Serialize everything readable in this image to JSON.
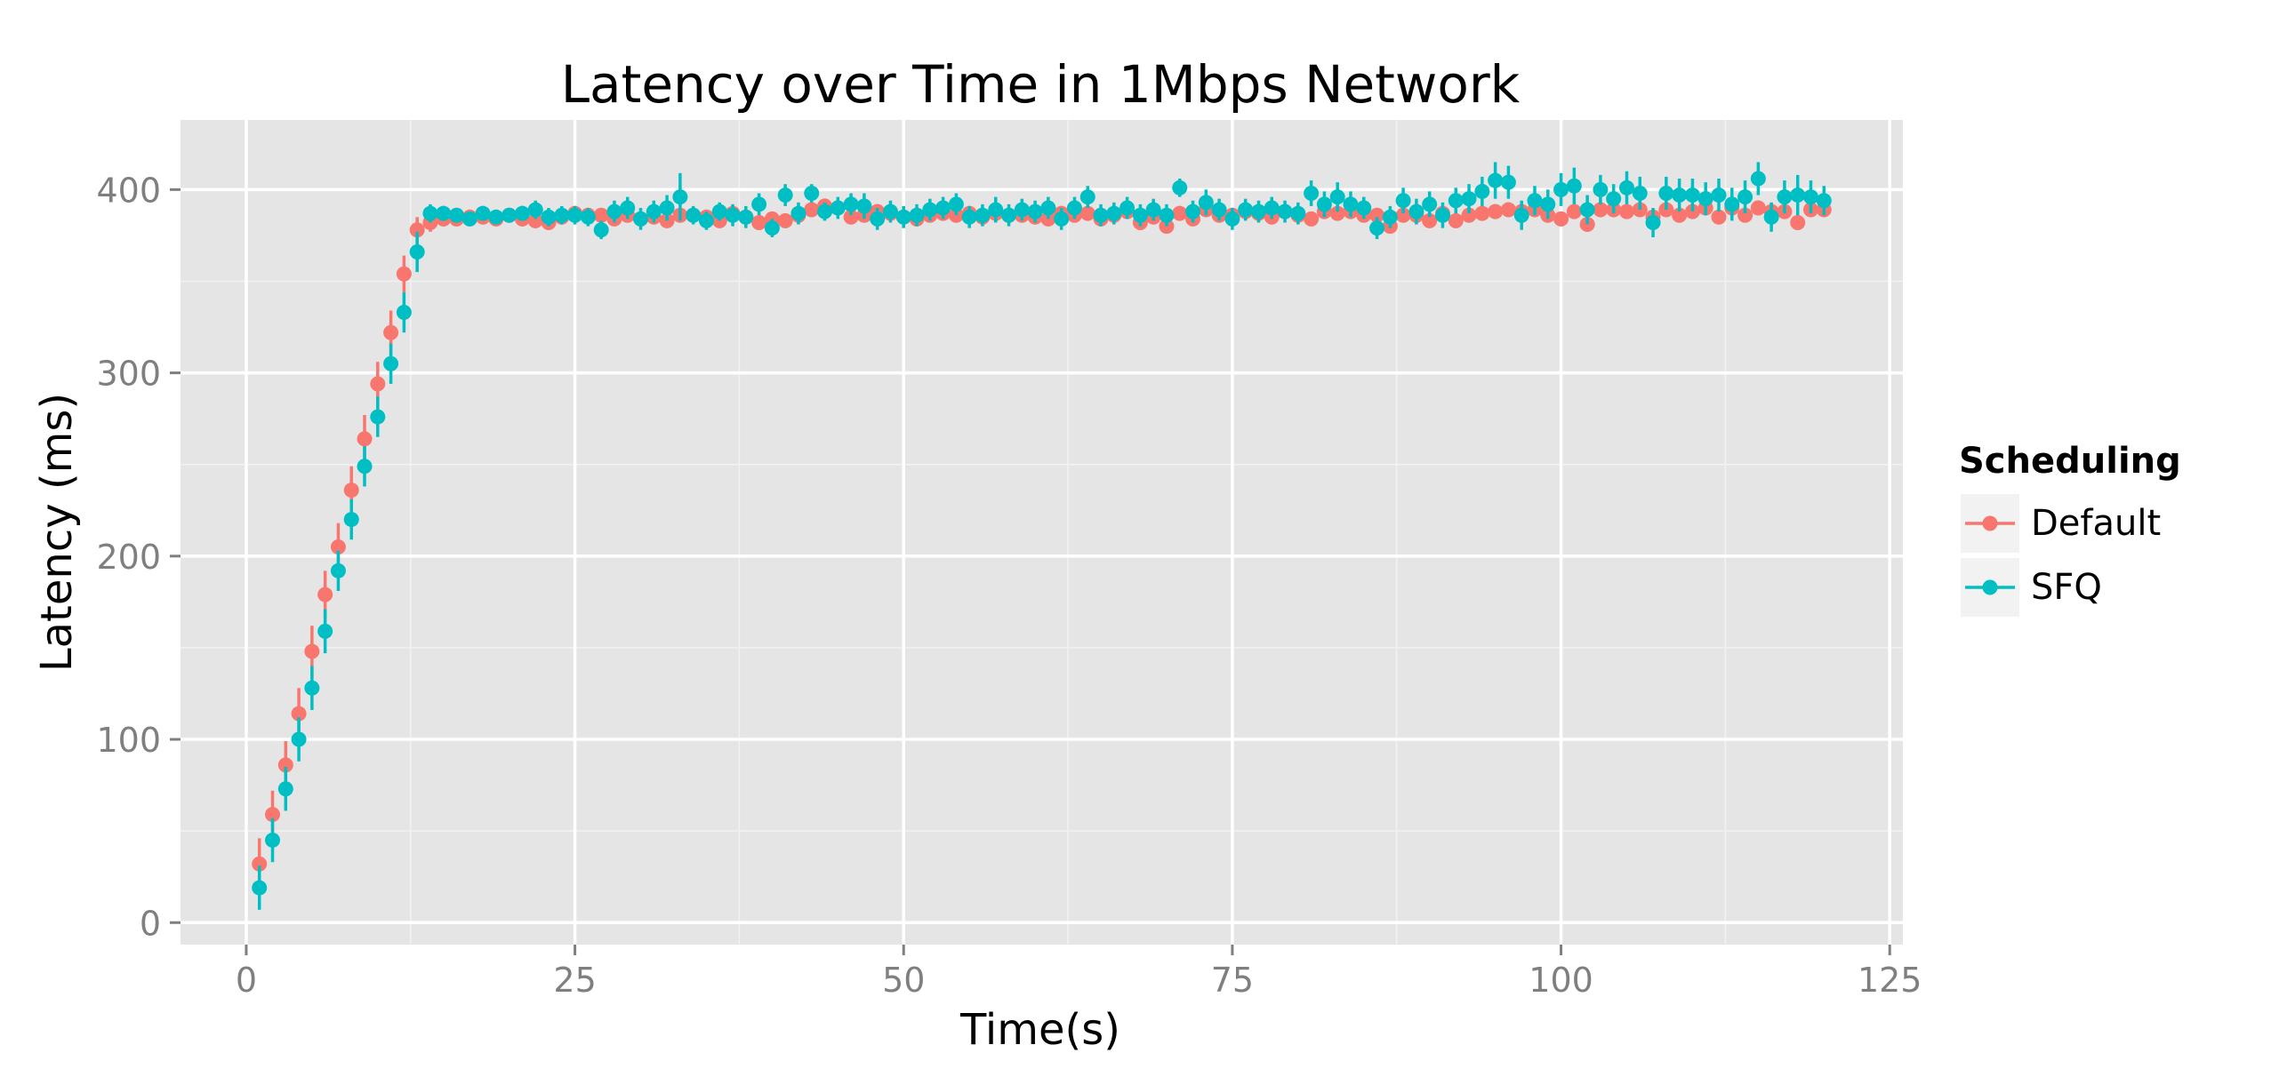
{
  "chart_data": {
    "type": "scatter",
    "title": "Latency over Time in 1Mbps Network",
    "xlabel": "Time(s)",
    "ylabel": "Latency (ms)",
    "xlim": [
      -5,
      126
    ],
    "ylim": [
      -12,
      438
    ],
    "x_ticks": [
      0,
      25,
      50,
      75,
      100,
      125
    ],
    "y_ticks": [
      0,
      100,
      200,
      300,
      400
    ],
    "grid": true,
    "error_bars": true,
    "legend": {
      "title": "Scheduling",
      "position": "right"
    },
    "series": [
      {
        "name": "Default",
        "color": "#F8766D",
        "x": [
          1,
          2,
          3,
          4,
          5,
          6,
          7,
          8,
          9,
          10,
          11,
          12,
          13,
          14,
          15,
          16,
          17,
          18,
          19,
          20,
          21,
          22,
          23,
          24,
          25,
          26,
          27,
          28,
          29,
          30,
          31,
          32,
          33,
          34,
          35,
          36,
          37,
          38,
          39,
          40,
          41,
          42,
          43,
          44,
          45,
          46,
          47,
          48,
          49,
          50,
          51,
          52,
          53,
          54,
          55,
          56,
          57,
          58,
          59,
          60,
          61,
          62,
          63,
          64,
          65,
          66,
          67,
          68,
          69,
          70,
          71,
          72,
          73,
          74,
          75,
          76,
          77,
          78,
          79,
          80,
          81,
          82,
          83,
          84,
          85,
          86,
          87,
          88,
          89,
          90,
          91,
          92,
          93,
          94,
          95,
          96,
          97,
          98,
          99,
          100,
          101,
          102,
          103,
          104,
          105,
          106,
          107,
          108,
          109,
          110,
          111,
          112,
          113,
          114,
          115,
          116,
          117,
          118,
          119,
          120
        ],
        "y": [
          32,
          59,
          86,
          114,
          148,
          179,
          205,
          236,
          264,
          294,
          322,
          354,
          378,
          382,
          384,
          384,
          385,
          385,
          384,
          386,
          384,
          383,
          382,
          385,
          387,
          386,
          386,
          384,
          386,
          384,
          385,
          383,
          386,
          386,
          385,
          383,
          387,
          385,
          382,
          384,
          383,
          386,
          389,
          391,
          390,
          385,
          386,
          388,
          387,
          385,
          384,
          386,
          387,
          386,
          387,
          385,
          387,
          386,
          386,
          385,
          384,
          387,
          386,
          387,
          384,
          386,
          388,
          382,
          385,
          380,
          387,
          384,
          389,
          386,
          386,
          388,
          387,
          385,
          388,
          386,
          384,
          388,
          387,
          388,
          386,
          386,
          380,
          386,
          386,
          383,
          387,
          383,
          386,
          387,
          388,
          389,
          388,
          389,
          386,
          384,
          388,
          381,
          389,
          389,
          388,
          389,
          385,
          389,
          386,
          388,
          390,
          385,
          390,
          386,
          390,
          388,
          388,
          382,
          389,
          389
        ],
        "err": [
          14,
          13,
          13,
          14,
          14,
          13,
          13,
          13,
          13,
          12,
          12,
          10,
          7,
          5,
          4,
          4,
          4,
          4,
          4,
          4,
          4,
          4,
          4,
          4,
          4,
          4,
          4,
          4,
          4,
          4,
          4,
          4,
          4,
          4,
          4,
          4,
          4,
          4,
          4,
          4,
          4,
          4,
          4,
          4,
          4,
          4,
          4,
          4,
          4,
          4,
          4,
          4,
          4,
          4,
          4,
          4,
          4,
          4,
          4,
          4,
          4,
          4,
          4,
          4,
          4,
          4,
          4,
          4,
          4,
          4,
          4,
          4,
          4,
          4,
          4,
          4,
          4,
          4,
          4,
          4,
          4,
          4,
          4,
          4,
          4,
          4,
          4,
          4,
          4,
          4,
          4,
          4,
          4,
          4,
          4,
          4,
          4,
          4,
          4,
          4,
          4,
          4,
          4,
          4,
          4,
          4,
          4,
          4,
          4,
          4,
          4,
          4,
          4,
          4,
          4,
          4,
          4,
          4,
          4,
          4
        ]
      },
      {
        "name": "SFQ",
        "color": "#00BFC4",
        "x": [
          1,
          2,
          3,
          4,
          5,
          6,
          7,
          8,
          9,
          10,
          11,
          12,
          13,
          14,
          15,
          16,
          17,
          18,
          19,
          20,
          21,
          22,
          23,
          24,
          25,
          26,
          27,
          28,
          29,
          30,
          31,
          32,
          33,
          34,
          35,
          36,
          37,
          38,
          39,
          40,
          41,
          42,
          43,
          44,
          45,
          46,
          47,
          48,
          49,
          50,
          51,
          52,
          53,
          54,
          55,
          56,
          57,
          58,
          59,
          60,
          61,
          62,
          63,
          64,
          65,
          66,
          67,
          68,
          69,
          70,
          71,
          72,
          73,
          74,
          75,
          76,
          77,
          78,
          79,
          80,
          81,
          82,
          83,
          84,
          85,
          86,
          87,
          88,
          89,
          90,
          91,
          92,
          93,
          94,
          95,
          96,
          97,
          98,
          99,
          100,
          101,
          102,
          103,
          104,
          105,
          106,
          107,
          108,
          109,
          110,
          111,
          112,
          113,
          114,
          115,
          116,
          117,
          118,
          119,
          120
        ],
        "y": [
          19,
          45,
          73,
          100,
          128,
          159,
          192,
          220,
          249,
          276,
          305,
          333,
          366,
          387,
          387,
          386,
          384,
          387,
          385,
          386,
          387,
          389,
          385,
          386,
          386,
          385,
          378,
          388,
          390,
          384,
          388,
          390,
          396,
          386,
          383,
          388,
          386,
          385,
          392,
          379,
          397,
          387,
          398,
          388,
          390,
          392,
          391,
          384,
          388,
          385,
          386,
          389,
          390,
          392,
          385,
          386,
          389,
          386,
          389,
          388,
          390,
          384,
          390,
          396,
          386,
          387,
          390,
          386,
          389,
          386,
          401,
          388,
          393,
          389,
          384,
          389,
          388,
          390,
          388,
          387,
          398,
          392,
          396,
          392,
          390,
          379,
          385,
          394,
          388,
          392,
          386,
          394,
          395,
          399,
          405,
          404,
          386,
          394,
          392,
          400,
          402,
          389,
          400,
          395,
          401,
          398,
          382,
          398,
          397,
          397,
          395,
          397,
          392,
          396,
          406,
          385,
          396,
          397,
          396,
          394
        ],
        "err": [
          12,
          12,
          12,
          12,
          12,
          12,
          11,
          11,
          11,
          11,
          11,
          11,
          11,
          5,
          4,
          4,
          4,
          4,
          4,
          4,
          4,
          5,
          5,
          5,
          5,
          5,
          5,
          6,
          6,
          6,
          6,
          7,
          13,
          5,
          5,
          5,
          6,
          6,
          6,
          5,
          6,
          6,
          5,
          5,
          6,
          6,
          7,
          6,
          6,
          6,
          6,
          6,
          6,
          6,
          6,
          6,
          7,
          6,
          6,
          6,
          6,
          6,
          6,
          6,
          6,
          6,
          6,
          6,
          6,
          6,
          5,
          6,
          7,
          6,
          6,
          6,
          6,
          6,
          6,
          6,
          7,
          7,
          8,
          7,
          6,
          6,
          6,
          7,
          7,
          7,
          7,
          7,
          8,
          8,
          10,
          9,
          8,
          8,
          8,
          9,
          10,
          8,
          8,
          8,
          9,
          9,
          8,
          9,
          9,
          9,
          9,
          9,
          9,
          9,
          9,
          8,
          9,
          11,
          9,
          8
        ]
      }
    ]
  }
}
